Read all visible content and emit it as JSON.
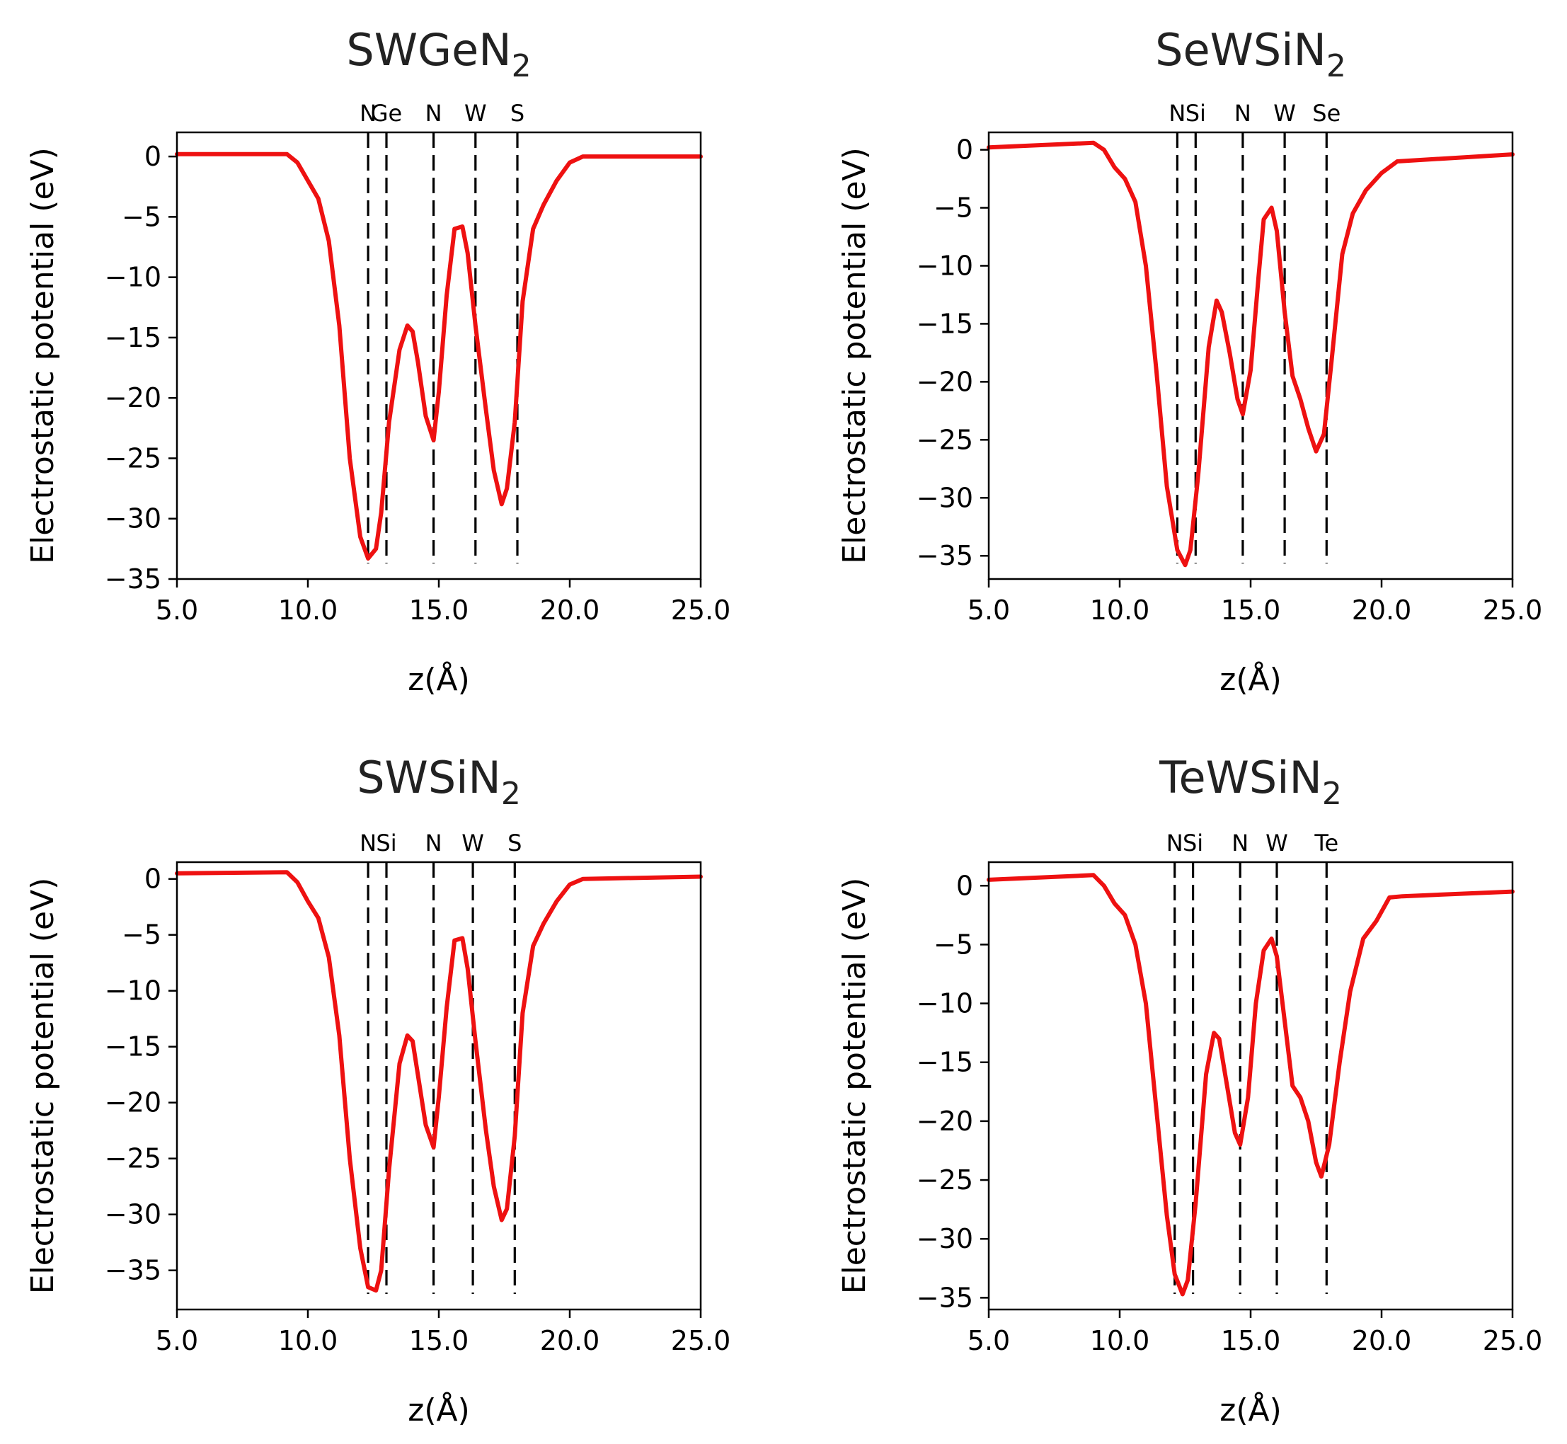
{
  "chart_data": [
    {
      "type": "line",
      "title": "SWGeN",
      "title_subscript": "2",
      "xlabel": "z(Å)",
      "ylabel": "Electrostatic potential (eV)",
      "xlim": [
        5.0,
        25.0
      ],
      "ylim": [
        -35,
        2
      ],
      "xticks": [
        5.0,
        10.0,
        15.0,
        20.0,
        25.0
      ],
      "xtick_labels": [
        "5.0",
        "10.0",
        "15.0",
        "20.0",
        "25.0"
      ],
      "yticks": [
        0,
        -5,
        -10,
        -15,
        -20,
        -25,
        -30,
        -35
      ],
      "ytick_labels": [
        "0",
        "−5",
        "−10",
        "−15",
        "−20",
        "−25",
        "−30",
        "−35"
      ],
      "line_color": "#ee1111",
      "atom_lines": [
        {
          "label": "N",
          "z": 12.3
        },
        {
          "label": "Ge",
          "z": 13.0
        },
        {
          "label": "N",
          "z": 14.8
        },
        {
          "label": "W",
          "z": 16.4
        },
        {
          "label": "S",
          "z": 18.0
        }
      ],
      "series": [
        {
          "name": "potential",
          "x": [
            5.0,
            9.2,
            9.6,
            10.0,
            10.4,
            10.8,
            11.2,
            11.6,
            12.0,
            12.3,
            12.6,
            12.8,
            13.1,
            13.5,
            13.8,
            14.0,
            14.2,
            14.5,
            14.8,
            15.0,
            15.3,
            15.6,
            15.9,
            16.1,
            16.4,
            16.8,
            17.1,
            17.4,
            17.6,
            17.9,
            18.2,
            18.6,
            19.0,
            19.5,
            20.0,
            20.5,
            25.0
          ],
          "y": [
            0.2,
            0.2,
            -0.5,
            -2.0,
            -3.5,
            -7.0,
            -14.0,
            -25.0,
            -31.5,
            -33.3,
            -32.5,
            -29.5,
            -22.0,
            -16.0,
            -14.0,
            -14.5,
            -17.0,
            -21.5,
            -23.5,
            -19.5,
            -11.5,
            -6.0,
            -5.8,
            -8.0,
            -14.0,
            -21.0,
            -26.0,
            -28.8,
            -27.5,
            -22.0,
            -12.0,
            -6.0,
            -4.0,
            -2.0,
            -0.5,
            0.0,
            0.0
          ]
        }
      ]
    },
    {
      "type": "line",
      "title": "SeWSiN",
      "title_subscript": "2",
      "xlabel": "z(Å)",
      "ylabel": "Electrostatic potential (eV)",
      "xlim": [
        5.0,
        25.0
      ],
      "ylim": [
        -37,
        1.5
      ],
      "xticks": [
        5.0,
        10.0,
        15.0,
        20.0,
        25.0
      ],
      "xtick_labels": [
        "5.0",
        "10.0",
        "15.0",
        "20.0",
        "25.0"
      ],
      "yticks": [
        0,
        -5,
        -10,
        -15,
        -20,
        -25,
        -30,
        -35
      ],
      "ytick_labels": [
        "0",
        "−5",
        "−10",
        "−15",
        "−20",
        "−25",
        "−30",
        "−35"
      ],
      "line_color": "#ee1111",
      "atom_lines": [
        {
          "label": "N",
          "z": 12.2
        },
        {
          "label": "Si",
          "z": 12.9
        },
        {
          "label": "N",
          "z": 14.7
        },
        {
          "label": "W",
          "z": 16.3
        },
        {
          "label": "Se",
          "z": 17.9
        }
      ],
      "series": [
        {
          "name": "potential",
          "x": [
            5.0,
            9.0,
            9.4,
            9.8,
            10.2,
            10.6,
            11.0,
            11.4,
            11.8,
            12.2,
            12.5,
            12.7,
            13.0,
            13.4,
            13.7,
            13.9,
            14.2,
            14.5,
            14.7,
            15.0,
            15.3,
            15.5,
            15.8,
            16.0,
            16.3,
            16.6,
            16.9,
            17.2,
            17.5,
            17.8,
            18.1,
            18.5,
            18.9,
            19.4,
            20.0,
            20.6,
            25.0
          ],
          "y": [
            0.2,
            0.6,
            0.0,
            -1.5,
            -2.5,
            -4.5,
            -10.0,
            -19.0,
            -29.0,
            -34.5,
            -35.8,
            -34.5,
            -28.0,
            -17.0,
            -13.0,
            -14.0,
            -17.5,
            -21.5,
            -22.8,
            -19.0,
            -11.0,
            -6.0,
            -5.0,
            -7.0,
            -14.0,
            -19.5,
            -21.5,
            -24.0,
            -26.0,
            -24.5,
            -18.0,
            -9.0,
            -5.5,
            -3.5,
            -2.0,
            -1.0,
            -0.4
          ]
        }
      ]
    },
    {
      "type": "line",
      "title": "SWSiN",
      "title_subscript": "2",
      "xlabel": "z(Å)",
      "ylabel": "Electrostatic potential (eV)",
      "xlim": [
        5.0,
        25.0
      ],
      "ylim": [
        -38.5,
        1.5
      ],
      "xticks": [
        5.0,
        10.0,
        15.0,
        20.0,
        25.0
      ],
      "xtick_labels": [
        "5.0",
        "10.0",
        "15.0",
        "20.0",
        "25.0"
      ],
      "yticks": [
        0,
        -5,
        -10,
        -15,
        -20,
        -25,
        -30,
        -35
      ],
      "ytick_labels": [
        "0",
        "−5",
        "−10",
        "−15",
        "−20",
        "−25",
        "−30",
        "−35"
      ],
      "line_color": "#ee1111",
      "atom_lines": [
        {
          "label": "N",
          "z": 12.3
        },
        {
          "label": "Si",
          "z": 13.0
        },
        {
          "label": "N",
          "z": 14.8
        },
        {
          "label": "W",
          "z": 16.3
        },
        {
          "label": "S",
          "z": 17.9
        }
      ],
      "series": [
        {
          "name": "potential",
          "x": [
            5.0,
            9.2,
            9.6,
            10.0,
            10.4,
            10.8,
            11.2,
            11.6,
            12.0,
            12.3,
            12.6,
            12.8,
            13.1,
            13.5,
            13.8,
            14.0,
            14.2,
            14.5,
            14.8,
            15.0,
            15.3,
            15.6,
            15.9,
            16.1,
            16.4,
            16.8,
            17.1,
            17.4,
            17.6,
            17.9,
            18.2,
            18.6,
            19.0,
            19.5,
            20.0,
            20.5,
            25.0
          ],
          "y": [
            0.5,
            0.6,
            -0.3,
            -2.0,
            -3.5,
            -7.0,
            -14.0,
            -25.0,
            -33.0,
            -36.5,
            -36.8,
            -35.0,
            -26.0,
            -16.5,
            -14.0,
            -14.5,
            -17.5,
            -22.0,
            -24.0,
            -19.5,
            -11.5,
            -5.5,
            -5.3,
            -8.0,
            -14.5,
            -22.5,
            -27.5,
            -30.5,
            -29.5,
            -23.0,
            -12.0,
            -6.0,
            -4.0,
            -2.0,
            -0.5,
            0.0,
            0.2
          ]
        }
      ]
    },
    {
      "type": "line",
      "title": "TeWSiN",
      "title_subscript": "2",
      "xlabel": "z(Å)",
      "ylabel": "Electrostatic potential (eV)",
      "xlim": [
        5.0,
        25.0
      ],
      "ylim": [
        -36,
        2
      ],
      "xticks": [
        5.0,
        10.0,
        15.0,
        20.0,
        25.0
      ],
      "xtick_labels": [
        "5.0",
        "10.0",
        "15.0",
        "20.0",
        "25.0"
      ],
      "yticks": [
        0,
        -5,
        -10,
        -15,
        -20,
        -25,
        -30,
        -35
      ],
      "ytick_labels": [
        "0",
        "−5",
        "−10",
        "−15",
        "−20",
        "−25",
        "−30",
        "−35"
      ],
      "line_color": "#ee1111",
      "atom_lines": [
        {
          "label": "N",
          "z": 12.1
        },
        {
          "label": "Si",
          "z": 12.8
        },
        {
          "label": "N",
          "z": 14.6
        },
        {
          "label": "W",
          "z": 16.0
        },
        {
          "label": "Te",
          "z": 17.9
        }
      ],
      "series": [
        {
          "name": "potential",
          "x": [
            5.0,
            9.0,
            9.4,
            9.8,
            10.2,
            10.6,
            11.0,
            11.4,
            11.8,
            12.1,
            12.4,
            12.6,
            12.9,
            13.3,
            13.6,
            13.8,
            14.1,
            14.4,
            14.6,
            14.9,
            15.2,
            15.5,
            15.8,
            16.0,
            16.3,
            16.6,
            16.9,
            17.2,
            17.5,
            17.7,
            18.0,
            18.4,
            18.8,
            19.3,
            19.8,
            20.3,
            20.8,
            25.0
          ],
          "y": [
            0.5,
            0.9,
            0.0,
            -1.5,
            -2.5,
            -5.0,
            -10.0,
            -19.0,
            -28.0,
            -33.0,
            -34.7,
            -33.5,
            -27.0,
            -16.0,
            -12.5,
            -13.0,
            -17.0,
            -21.0,
            -22.0,
            -18.0,
            -10.0,
            -5.5,
            -4.5,
            -6.0,
            -11.5,
            -17.0,
            -18.0,
            -20.0,
            -23.5,
            -24.7,
            -22.0,
            -15.0,
            -9.0,
            -4.5,
            -3.0,
            -1.0,
            -0.9,
            -0.5
          ]
        }
      ]
    }
  ]
}
